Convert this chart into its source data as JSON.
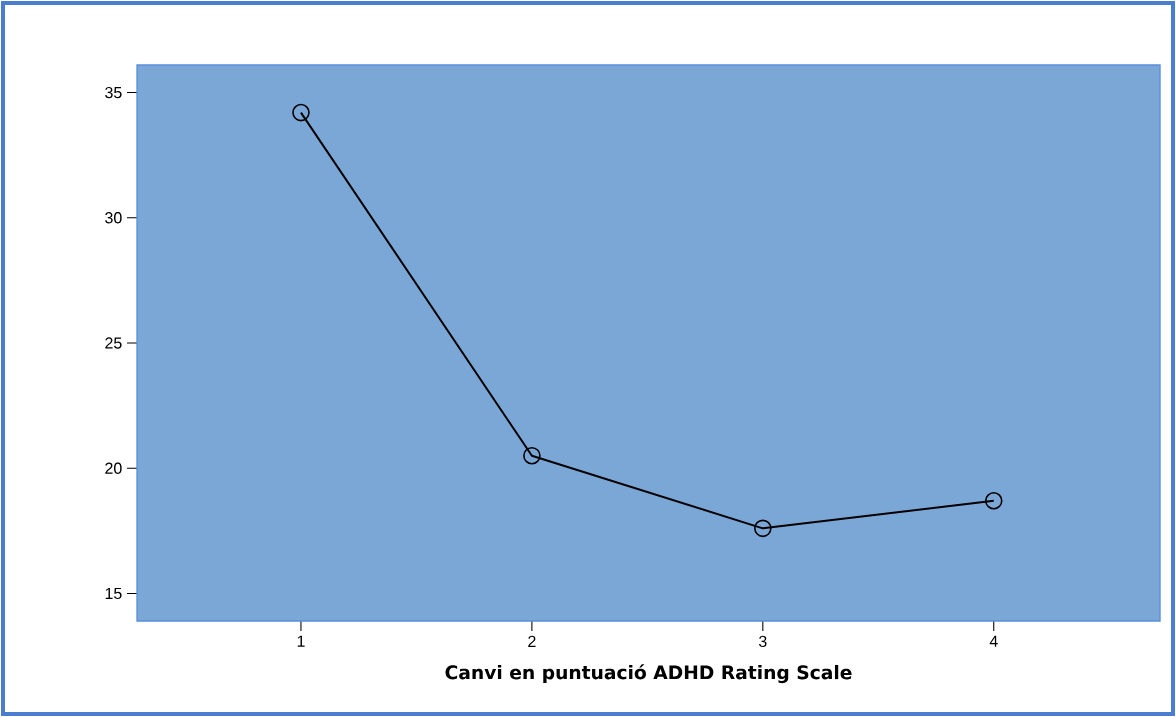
{
  "chart_data": {
    "type": "line",
    "xlabel": "Canvi en puntuació ADHD Rating Scale",
    "categories": [
      "1",
      "2",
      "3",
      "4"
    ],
    "series": [
      {
        "color": "#000000",
        "values": [
          34.2,
          20.5,
          17.6,
          18.7
        ]
      }
    ],
    "ylim": [
      13.9,
      36.1
    ],
    "yticks": [
      15,
      20,
      25,
      30,
      35
    ],
    "marker": "circle",
    "line_style": "solid"
  }
}
